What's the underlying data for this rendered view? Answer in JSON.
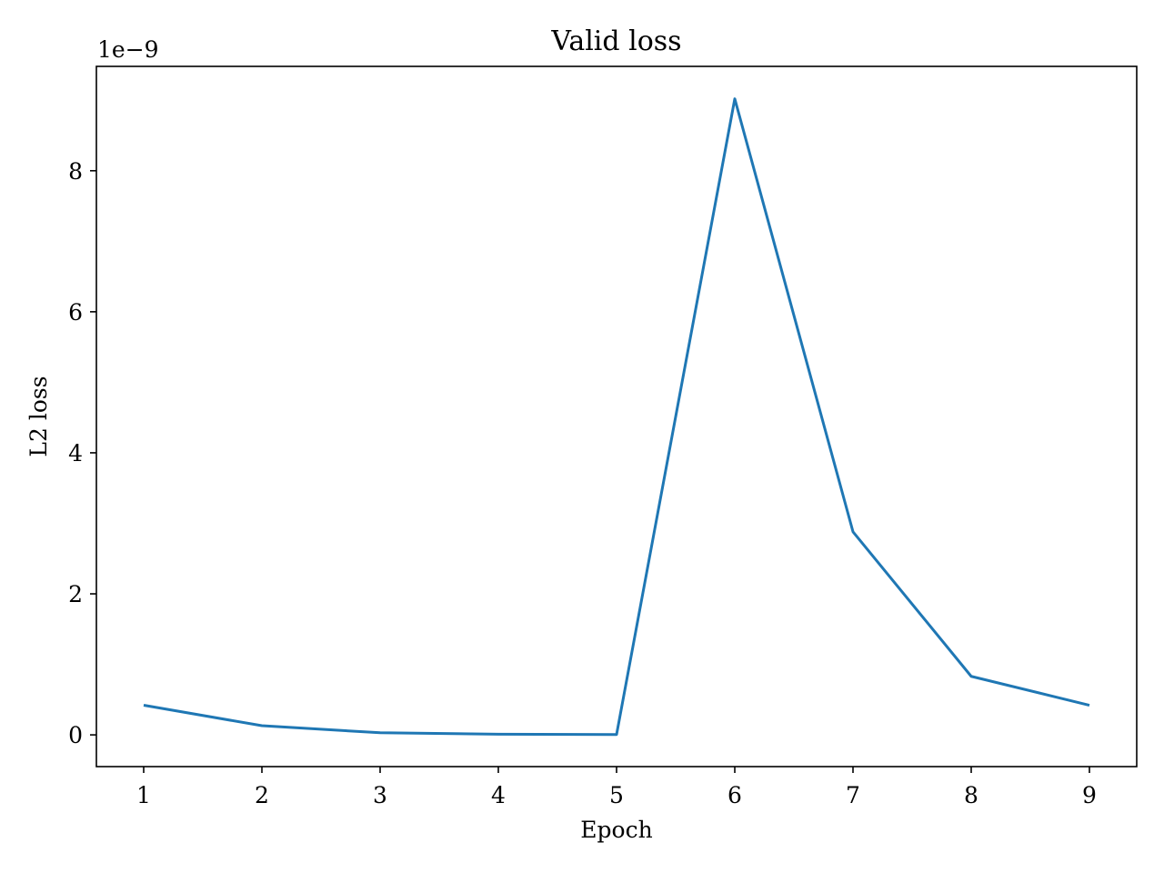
{
  "chart_data": {
    "type": "line",
    "title": "Valid loss",
    "xlabel": "Epoch",
    "ylabel": "L2 loss",
    "y_offset_label": "1e−9",
    "x": [
      1,
      2,
      3,
      4,
      5,
      6,
      7,
      8,
      9
    ],
    "xlim": [
      0.6,
      9.4
    ],
    "ylim": [
      -0.45,
      9.48
    ],
    "x_ticks": [
      1,
      2,
      3,
      4,
      5,
      6,
      7,
      8,
      9
    ],
    "x_tick_labels": [
      "1",
      "2",
      "3",
      "4",
      "5",
      "6",
      "7",
      "8",
      "9"
    ],
    "y_ticks": [
      0,
      2,
      4,
      6,
      8
    ],
    "y_tick_labels": [
      "0",
      "2",
      "4",
      "6",
      "8"
    ],
    "grid": false,
    "series": [
      {
        "name": "Valid loss",
        "color": "#1f77b4",
        "values": [
          0.42,
          0.13,
          0.03,
          0.01,
          0.005,
          9.02,
          2.88,
          0.83,
          0.42
        ]
      }
    ]
  }
}
